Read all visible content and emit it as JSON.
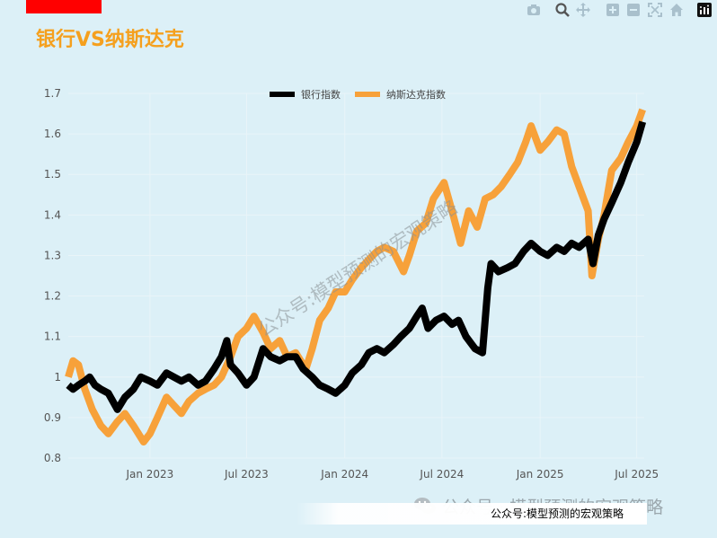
{
  "title": "银行VS纳斯达克",
  "toolbar": {
    "icons": [
      "camera-icon",
      "zoom-icon",
      "pan-icon",
      "zoom-in-icon",
      "zoom-out-icon",
      "autoscale-icon",
      "reset-axes-icon",
      "plotly-logo-icon"
    ]
  },
  "watermark": {
    "diagonal": "公众号:模型预测的宏观策略",
    "bottom": "公众号 · 模型预测的宏观策略"
  },
  "source": "公众号:模型预测的宏观策略",
  "chart_data": {
    "type": "line",
    "title": "银行VS纳斯达克",
    "ylim": [
      0.8,
      1.7
    ],
    "y_ticks": [
      0.8,
      0.9,
      1.0,
      1.1,
      1.2,
      1.3,
      1.4,
      1.5,
      1.6,
      1.7
    ],
    "y_tick_labels": [
      "0.8",
      "0.9",
      "1",
      "1.1",
      "1.2",
      "1.3",
      "1.4",
      "1.5",
      "1.6",
      "1.7"
    ],
    "x_range": [
      "2022-08-01",
      "2025-07-15"
    ],
    "x_ticks": [
      "2023-01-01",
      "2023-07-01",
      "2024-01-01",
      "2024-07-01",
      "2025-01-01",
      "2025-07-01"
    ],
    "x_tick_labels": [
      "Jan 2023",
      "Jul 2023",
      "Jan 2024",
      "Jul 2024",
      "Jan 2025",
      "Jul 2025"
    ],
    "grid": true,
    "legend_position": "top-center",
    "colors": {
      "bank": "#000000",
      "nasdaq": "#f7a13a",
      "grid": "#e9f4f8",
      "axis_text": "#555555"
    },
    "series": [
      {
        "name": "银行指数",
        "color": "#000000",
        "points": [
          [
            "2022-08-01",
            0.98
          ],
          [
            "2022-08-10",
            0.97
          ],
          [
            "2022-08-20",
            0.98
          ],
          [
            "2022-09-01",
            0.99
          ],
          [
            "2022-09-10",
            1.0
          ],
          [
            "2022-09-20",
            0.98
          ],
          [
            "2022-10-01",
            0.97
          ],
          [
            "2022-10-15",
            0.96
          ],
          [
            "2022-11-01",
            0.92
          ],
          [
            "2022-11-15",
            0.95
          ],
          [
            "2022-12-01",
            0.97
          ],
          [
            "2022-12-15",
            1.0
          ],
          [
            "2023-01-01",
            0.99
          ],
          [
            "2023-01-15",
            0.98
          ],
          [
            "2023-02-01",
            1.01
          ],
          [
            "2023-02-15",
            1.0
          ],
          [
            "2023-03-01",
            0.99
          ],
          [
            "2023-03-15",
            1.0
          ],
          [
            "2023-04-01",
            0.98
          ],
          [
            "2023-04-15",
            0.99
          ],
          [
            "2023-05-01",
            1.02
          ],
          [
            "2023-05-15",
            1.05
          ],
          [
            "2023-05-25",
            1.09
          ],
          [
            "2023-06-01",
            1.03
          ],
          [
            "2023-06-15",
            1.01
          ],
          [
            "2023-07-01",
            0.98
          ],
          [
            "2023-07-15",
            1.0
          ],
          [
            "2023-08-01",
            1.07
          ],
          [
            "2023-08-15",
            1.05
          ],
          [
            "2023-09-01",
            1.04
          ],
          [
            "2023-09-15",
            1.05
          ],
          [
            "2023-10-01",
            1.05
          ],
          [
            "2023-10-15",
            1.02
          ],
          [
            "2023-11-01",
            1.0
          ],
          [
            "2023-11-15",
            0.98
          ],
          [
            "2023-12-01",
            0.97
          ],
          [
            "2023-12-15",
            0.96
          ],
          [
            "2024-01-01",
            0.98
          ],
          [
            "2024-01-15",
            1.01
          ],
          [
            "2024-02-01",
            1.03
          ],
          [
            "2024-02-15",
            1.06
          ],
          [
            "2024-03-01",
            1.07
          ],
          [
            "2024-03-15",
            1.06
          ],
          [
            "2024-04-01",
            1.08
          ],
          [
            "2024-04-15",
            1.1
          ],
          [
            "2024-05-01",
            1.12
          ],
          [
            "2024-05-15",
            1.15
          ],
          [
            "2024-05-25",
            1.17
          ],
          [
            "2024-06-05",
            1.12
          ],
          [
            "2024-06-20",
            1.14
          ],
          [
            "2024-07-05",
            1.15
          ],
          [
            "2024-07-20",
            1.13
          ],
          [
            "2024-08-01",
            1.14
          ],
          [
            "2024-08-15",
            1.1
          ],
          [
            "2024-09-01",
            1.07
          ],
          [
            "2024-09-15",
            1.06
          ],
          [
            "2024-09-25",
            1.22
          ],
          [
            "2024-10-01",
            1.28
          ],
          [
            "2024-10-15",
            1.26
          ],
          [
            "2024-11-01",
            1.27
          ],
          [
            "2024-11-15",
            1.28
          ],
          [
            "2024-12-01",
            1.31
          ],
          [
            "2024-12-15",
            1.33
          ],
          [
            "2025-01-01",
            1.31
          ],
          [
            "2025-01-15",
            1.3
          ],
          [
            "2025-02-01",
            1.32
          ],
          [
            "2025-02-15",
            1.31
          ],
          [
            "2025-03-01",
            1.33
          ],
          [
            "2025-03-15",
            1.32
          ],
          [
            "2025-04-01",
            1.34
          ],
          [
            "2025-04-10",
            1.28
          ],
          [
            "2025-04-20",
            1.35
          ],
          [
            "2025-05-01",
            1.39
          ],
          [
            "2025-05-15",
            1.43
          ],
          [
            "2025-06-01",
            1.48
          ],
          [
            "2025-06-15",
            1.53
          ],
          [
            "2025-07-01",
            1.58
          ],
          [
            "2025-07-12",
            1.63
          ]
        ]
      },
      {
        "name": "纳斯达克指数",
        "color": "#f7a13a",
        "points": [
          [
            "2022-08-01",
            1.0
          ],
          [
            "2022-08-10",
            1.04
          ],
          [
            "2022-08-20",
            1.03
          ],
          [
            "2022-09-01",
            0.97
          ],
          [
            "2022-09-15",
            0.92
          ],
          [
            "2022-10-01",
            0.88
          ],
          [
            "2022-10-15",
            0.86
          ],
          [
            "2022-11-01",
            0.89
          ],
          [
            "2022-11-15",
            0.91
          ],
          [
            "2022-12-01",
            0.88
          ],
          [
            "2022-12-20",
            0.84
          ],
          [
            "2023-01-01",
            0.86
          ],
          [
            "2023-01-15",
            0.9
          ],
          [
            "2023-02-01",
            0.95
          ],
          [
            "2023-02-15",
            0.93
          ],
          [
            "2023-03-01",
            0.91
          ],
          [
            "2023-03-15",
            0.94
          ],
          [
            "2023-04-01",
            0.96
          ],
          [
            "2023-04-15",
            0.97
          ],
          [
            "2023-05-01",
            0.98
          ],
          [
            "2023-05-15",
            1.0
          ],
          [
            "2023-06-01",
            1.05
          ],
          [
            "2023-06-15",
            1.1
          ],
          [
            "2023-07-01",
            1.12
          ],
          [
            "2023-07-15",
            1.15
          ],
          [
            "2023-08-01",
            1.11
          ],
          [
            "2023-08-15",
            1.07
          ],
          [
            "2023-09-01",
            1.09
          ],
          [
            "2023-09-15",
            1.05
          ],
          [
            "2023-10-01",
            1.06
          ],
          [
            "2023-10-20",
            1.02
          ],
          [
            "2023-11-01",
            1.07
          ],
          [
            "2023-11-15",
            1.14
          ],
          [
            "2023-12-01",
            1.17
          ],
          [
            "2023-12-15",
            1.21
          ],
          [
            "2024-01-01",
            1.21
          ],
          [
            "2024-01-15",
            1.24
          ],
          [
            "2024-02-01",
            1.27
          ],
          [
            "2024-02-15",
            1.29
          ],
          [
            "2024-03-01",
            1.31
          ],
          [
            "2024-03-15",
            1.32
          ],
          [
            "2024-04-01",
            1.31
          ],
          [
            "2024-04-20",
            1.26
          ],
          [
            "2024-05-01",
            1.3
          ],
          [
            "2024-05-15",
            1.36
          ],
          [
            "2024-06-01",
            1.38
          ],
          [
            "2024-06-15",
            1.44
          ],
          [
            "2024-07-05",
            1.48
          ],
          [
            "2024-07-20",
            1.41
          ],
          [
            "2024-08-05",
            1.33
          ],
          [
            "2024-08-20",
            1.41
          ],
          [
            "2024-09-05",
            1.37
          ],
          [
            "2024-09-20",
            1.44
          ],
          [
            "2024-10-05",
            1.45
          ],
          [
            "2024-10-20",
            1.47
          ],
          [
            "2024-11-05",
            1.5
          ],
          [
            "2024-11-20",
            1.53
          ],
          [
            "2024-12-05",
            1.58
          ],
          [
            "2024-12-15",
            1.62
          ],
          [
            "2025-01-01",
            1.56
          ],
          [
            "2025-01-15",
            1.58
          ],
          [
            "2025-02-01",
            1.61
          ],
          [
            "2025-02-15",
            1.6
          ],
          [
            "2025-03-01",
            1.52
          ],
          [
            "2025-03-15",
            1.47
          ],
          [
            "2025-04-01",
            1.41
          ],
          [
            "2025-04-08",
            1.25
          ],
          [
            "2025-04-20",
            1.34
          ],
          [
            "2025-05-01",
            1.4
          ],
          [
            "2025-05-15",
            1.51
          ],
          [
            "2025-06-01",
            1.54
          ],
          [
            "2025-06-15",
            1.58
          ],
          [
            "2025-07-01",
            1.62
          ],
          [
            "2025-07-12",
            1.66
          ]
        ]
      }
    ]
  }
}
